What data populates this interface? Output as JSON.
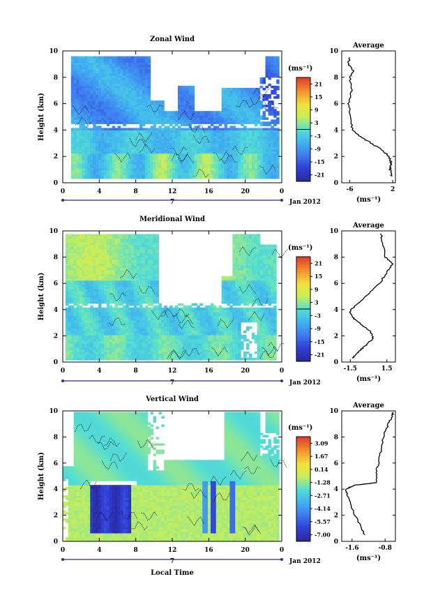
{
  "chart_data": [
    {
      "type": "heatmap",
      "title": "Zonal Wind",
      "ylabel": "Height (km)",
      "xlim": [
        0,
        24
      ],
      "ylim": [
        0,
        10
      ],
      "x_ticks": [
        "0",
        "4",
        "8",
        "12",
        "16",
        "20",
        "0"
      ],
      "y_ticks": [
        "0",
        "2",
        "4",
        "6",
        "8",
        "10"
      ],
      "date_day": "7",
      "date_label": "Jan 2012",
      "colorbar": {
        "unit": "(ms⁻¹)",
        "ticks": [
          "21",
          "15",
          "9",
          "3",
          "-3",
          "-9",
          "-15",
          "-21"
        ],
        "range": [
          -24,
          24
        ]
      },
      "average": {
        "title": "Average",
        "xlabel": "(ms⁻¹)",
        "x_ticks": [
          "-6",
          "2"
        ],
        "xlim": [
          -7.5,
          2.5
        ],
        "profile": [
          [
            1.8,
            0.5
          ],
          [
            1.5,
            1.0
          ],
          [
            1.7,
            1.5
          ],
          [
            1.3,
            2.0
          ],
          [
            0.0,
            2.5
          ],
          [
            -2.0,
            3.0
          ],
          [
            -4.0,
            3.5
          ],
          [
            -5.5,
            4.0
          ],
          [
            -5.8,
            5.0
          ],
          [
            -6.2,
            6.0
          ],
          [
            -5.6,
            7.0
          ],
          [
            -6.0,
            8.0
          ],
          [
            -5.4,
            8.5
          ],
          [
            -6.3,
            9.0
          ],
          [
            -6.0,
            9.5
          ]
        ]
      }
    },
    {
      "type": "heatmap",
      "title": "Meridional Wind",
      "ylabel": "Height (km)",
      "xlim": [
        0,
        24
      ],
      "ylim": [
        0,
        10
      ],
      "x_ticks": [
        "0",
        "4",
        "8",
        "12",
        "16",
        "20",
        "0"
      ],
      "y_ticks": [
        "0",
        "2",
        "4",
        "6",
        "8",
        "10"
      ],
      "date_day": "7",
      "date_label": "Jan 2012",
      "colorbar": {
        "unit": "(ms⁻¹)",
        "ticks": [
          "21",
          "15",
          "9",
          "3",
          "-3",
          "-9",
          "-15",
          "-21"
        ],
        "range": [
          -24,
          24
        ]
      },
      "average": {
        "title": "Average",
        "xlabel": "(ms⁻¹)",
        "x_ticks": [
          "-1.5",
          "1.5"
        ],
        "xlim": [
          -2.2,
          2.2
        ],
        "profile": [
          [
            -1.3,
            0.3
          ],
          [
            -0.8,
            0.8
          ],
          [
            -0.2,
            1.3
          ],
          [
            0.4,
            1.8
          ],
          [
            0.2,
            2.3
          ],
          [
            -0.5,
            2.8
          ],
          [
            -1.2,
            3.3
          ],
          [
            -1.6,
            3.8
          ],
          [
            -1.1,
            4.3
          ],
          [
            -0.2,
            5.0
          ],
          [
            0.9,
            6.0
          ],
          [
            1.6,
            7.0
          ],
          [
            2.0,
            7.5
          ],
          [
            1.4,
            8.0
          ],
          [
            1.2,
            9.0
          ],
          [
            1.0,
            9.8
          ]
        ]
      }
    },
    {
      "type": "heatmap",
      "title": "Vertical Wind",
      "ylabel": "Height (km)",
      "xlabel": "Local Time",
      "xlim": [
        0,
        24
      ],
      "ylim": [
        0,
        10
      ],
      "x_ticks": [
        "0",
        "4",
        "8",
        "12",
        "16",
        "20",
        "0"
      ],
      "y_ticks": [
        "0",
        "2",
        "4",
        "6",
        "8",
        "10"
      ],
      "date_day": "7",
      "date_label": "Jan 2012",
      "colorbar": {
        "unit": "(ms⁻¹)",
        "ticks": [
          "3.09",
          "1.67",
          "0.14",
          "-1.28",
          "-2.71",
          "-4.14",
          "-5.57",
          "-7.00"
        ],
        "range": [
          -7.7,
          3.8
        ]
      },
      "average": {
        "title": "Average",
        "xlabel": "(ms⁻¹)",
        "x_ticks": [
          "-1.6",
          "-0.8"
        ],
        "xlim": [
          -1.85,
          -0.55
        ],
        "profile": [
          [
            -1.3,
            0.5
          ],
          [
            -1.45,
            1.5
          ],
          [
            -1.6,
            2.5
          ],
          [
            -1.7,
            3.5
          ],
          [
            -1.75,
            4.0
          ],
          [
            -1.55,
            4.3
          ],
          [
            -1.0,
            4.5
          ],
          [
            -1.0,
            5.5
          ],
          [
            -0.95,
            6.0
          ],
          [
            -0.9,
            7.0
          ],
          [
            -0.85,
            8.0
          ],
          [
            -0.75,
            8.8
          ],
          [
            -0.65,
            9.5
          ],
          [
            -0.6,
            9.9
          ]
        ]
      }
    }
  ]
}
